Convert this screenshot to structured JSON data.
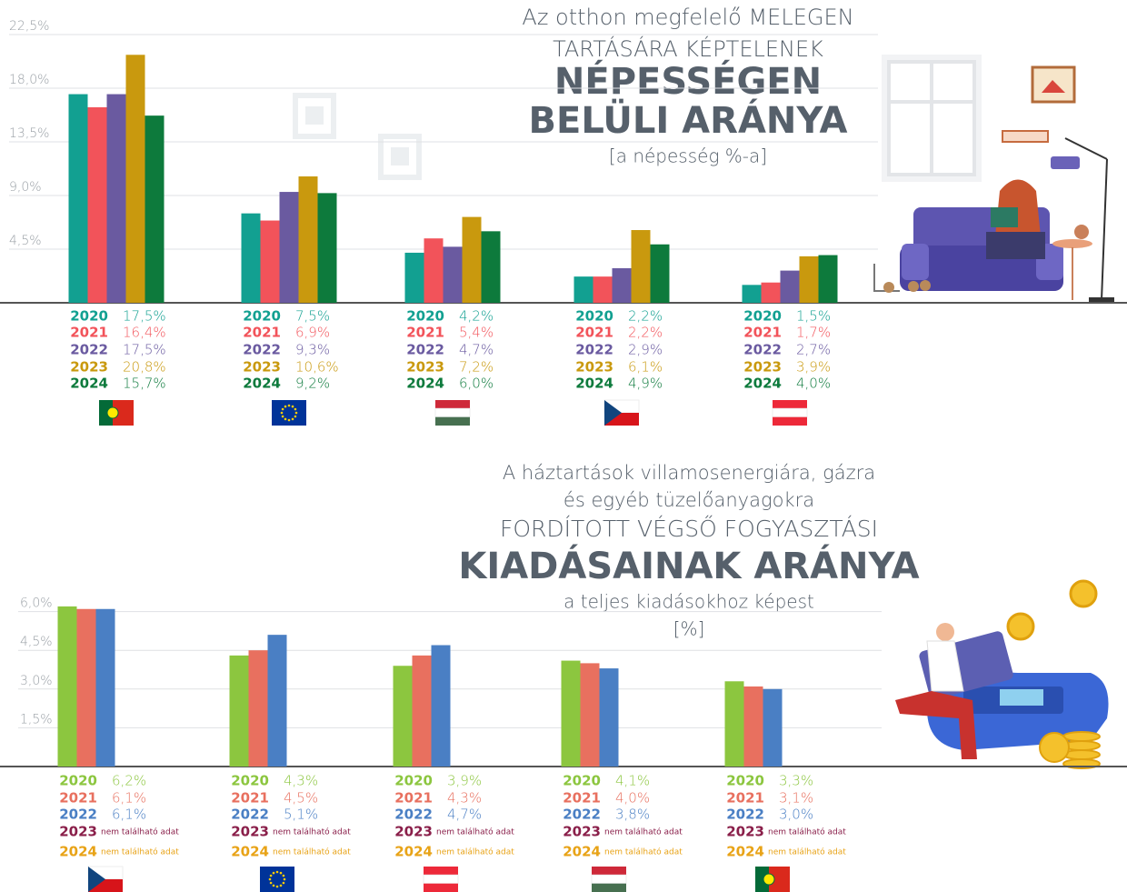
{
  "chart_data": [
    {
      "type": "bar",
      "title": [
        "Az otthon megfelelő MELEGEN",
        "TARTÁSÁRA KÉPTELENEK",
        "NÉPESSÉGEN",
        "BELÜLI ARÁNYA"
      ],
      "subtitle": [
        "[a népesség %-a]"
      ],
      "categories": [
        null,
        null,
        null,
        null,
        null
      ],
      "series": [
        {
          "name": "2020",
          "color": "#12a091",
          "values": [
            17.5,
            7.5,
            4.2,
            2.2,
            1.5
          ],
          "value_labels": [
            "17,5%",
            "7,5%",
            "4,2%",
            "2,2%",
            "1,5%"
          ]
        },
        {
          "name": "2021",
          "color": "#f2535a",
          "values": [
            16.4,
            6.9,
            5.4,
            2.2,
            1.7
          ],
          "value_labels": [
            "16,4%",
            "6,9%",
            "5,4%",
            "2,2%",
            "1,7%"
          ]
        },
        {
          "name": "2022",
          "color": "#6a5aa0",
          "values": [
            17.5,
            9.3,
            4.7,
            2.9,
            2.7
          ],
          "value_labels": [
            "17,5%",
            "9,3%",
            "4,7%",
            "2,9%",
            "2,7%"
          ]
        },
        {
          "name": "2023",
          "color": "#c9990e",
          "values": [
            20.8,
            10.6,
            7.2,
            6.1,
            3.9
          ],
          "value_labels": [
            "20,8%",
            "10,6%",
            "7,2%",
            "6,1%",
            "3,9%"
          ]
        },
        {
          "name": "2024",
          "color": "#0d7a3c",
          "values": [
            15.7,
            9.2,
            6.0,
            4.9,
            4.0
          ],
          "value_labels": [
            "15,7%",
            "9,2%",
            "6,0%",
            "4,9%",
            "4,0%"
          ]
        }
      ],
      "ylim": [
        0,
        22.5
      ],
      "yticks": [
        {
          "value": 4.5,
          "label": "4,5%"
        },
        {
          "value": 9.0,
          "label": "9,0%"
        },
        {
          "value": 13.5,
          "label": "13,5%"
        },
        {
          "value": 18.0,
          "label": "18,0%"
        },
        {
          "value": 22.5,
          "label": "22,5%"
        }
      ],
      "grid": true
    },
    {
      "type": "bar",
      "title": [
        "A háztartások villamosenergiára, gázra",
        "és egyéb tüzelőanyagokra",
        "FORDÍTOTT VÉGSŐ FOGYASZTÁSI",
        "KIADÁSAINAK ARÁNYA"
      ],
      "subtitle": [
        "a teljes kiadásokhoz képest",
        "[%]"
      ],
      "categories": [
        null,
        null,
        null,
        null,
        null
      ],
      "series": [
        {
          "name": "2020",
          "color": "#8cc63f",
          "values": [
            6.2,
            4.3,
            3.9,
            4.1,
            3.3
          ],
          "value_labels": [
            "6,2%",
            "4,3%",
            "3,9%",
            "4,1%",
            "3,3%"
          ]
        },
        {
          "name": "2021",
          "color": "#e8705f",
          "values": [
            6.1,
            4.5,
            4.3,
            4.0,
            3.1
          ],
          "value_labels": [
            "6,1%",
            "4,5%",
            "4,3%",
            "4,0%",
            "3,1%"
          ]
        },
        {
          "name": "2022",
          "color": "#4a7fc4",
          "values": [
            6.1,
            5.1,
            4.7,
            3.8,
            3.0
          ],
          "value_labels": [
            "6,1%",
            "5,1%",
            "4,7%",
            "3,8%",
            "3,0%"
          ]
        },
        {
          "name": "2023",
          "color": "#8a1f4a",
          "values": [
            null,
            null,
            null,
            null,
            null
          ],
          "value_labels": [
            "nem található adat",
            "nem található adat",
            "nem található adat",
            "nem található adat",
            "nem található adat"
          ]
        },
        {
          "name": "2024",
          "color": "#e8a317",
          "values": [
            null,
            null,
            null,
            null,
            null
          ],
          "value_labels": [
            "nem található adat",
            "nem található adat",
            "nem található adat",
            "nem található adat",
            "nem található adat"
          ]
        }
      ],
      "ylim": [
        0,
        6.5
      ],
      "yticks": [
        {
          "value": 1.5,
          "label": "1,5%"
        },
        {
          "value": 3.0,
          "label": "3,0%"
        },
        {
          "value": 4.5,
          "label": "4,5%"
        },
        {
          "value": 6.0,
          "label": "6,0%"
        }
      ],
      "grid": true
    }
  ]
}
